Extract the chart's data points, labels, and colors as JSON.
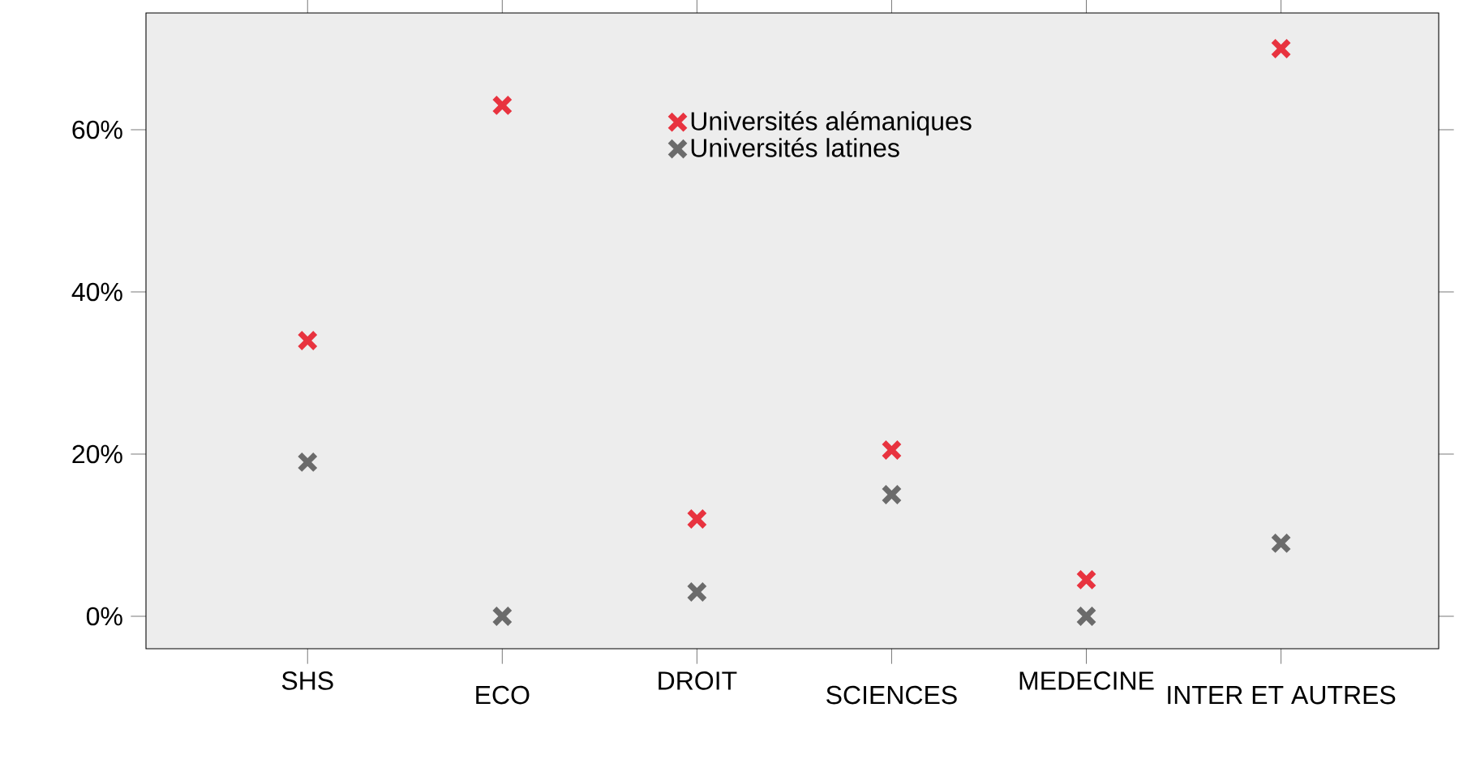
{
  "chart_data": {
    "type": "scatter",
    "categories": [
      "SHS",
      "ECO",
      "DROIT",
      "SCIENCES",
      "MEDECINE",
      "INTER ET AUTRES"
    ],
    "series": [
      {
        "name": "Universités alémaniques",
        "color": "#e8333f",
        "values": [
          34,
          63,
          12,
          20.5,
          4.5,
          70
        ]
      },
      {
        "name": "Universités latines",
        "color": "#6b6b6b",
        "values": [
          19,
          0,
          3,
          15,
          0,
          9
        ]
      }
    ],
    "ylim": [
      -4,
      74.4
    ],
    "yticks": [
      {
        "value": 0,
        "label": "0%"
      },
      {
        "value": 20,
        "label": "20%"
      },
      {
        "value": 40,
        "label": "40%"
      },
      {
        "value": 60,
        "label": "60%"
      }
    ],
    "marker": "cross",
    "legend": "top",
    "grid": false
  }
}
